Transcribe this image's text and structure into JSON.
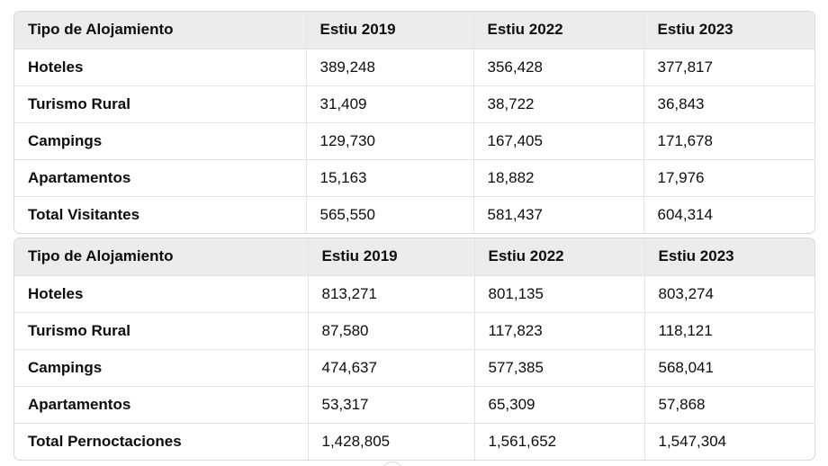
{
  "tables": [
    {
      "headers": [
        "Tipo de Alojamiento",
        "Estiu 2019",
        "Estiu 2022",
        "Estiu 2023"
      ],
      "rows": [
        [
          "Hoteles",
          "389,248",
          "356,428",
          "377,817"
        ],
        [
          "Turismo Rural",
          "31,409",
          "38,722",
          "36,843"
        ],
        [
          "Campings",
          "129,730",
          "167,405",
          "171,678"
        ],
        [
          "Apartamentos",
          "15,163",
          "18,882",
          "17,976"
        ],
        [
          "Total Visitantes",
          "565,550",
          "581,437",
          "604,314"
        ]
      ]
    },
    {
      "headers": [
        "Tipo de Alojamiento",
        "Estiu 2019",
        "Estiu 2022",
        "Estiu 2023"
      ],
      "rows": [
        [
          "Hoteles",
          "813,271",
          "801,135",
          "803,274"
        ],
        [
          "Turismo Rural",
          "87,580",
          "117,823",
          "118,121"
        ],
        [
          "Campings",
          "474,637",
          "577,385",
          "568,041"
        ],
        [
          "Apartamentos",
          "53,317",
          "65,309",
          "57,868"
        ],
        [
          "Total Pernoctaciones",
          "1,428,805",
          "1,561,652",
          "1,547,304"
        ]
      ]
    }
  ]
}
